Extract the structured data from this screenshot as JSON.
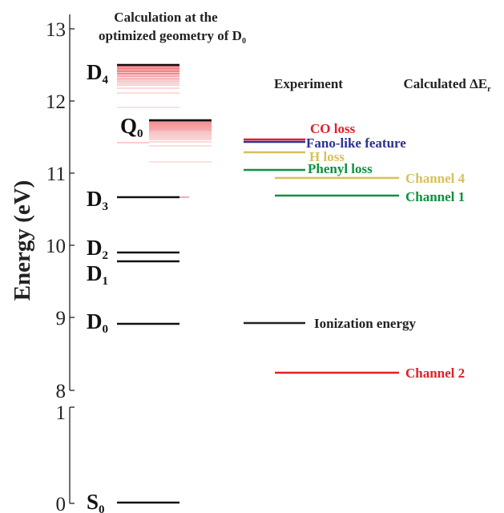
{
  "axis": {
    "ylabel": "Energy (eV)",
    "upper_ticks": [
      "8",
      "9",
      "10",
      "11",
      "12",
      "13"
    ],
    "lower_ticks": [
      "0",
      "1"
    ]
  },
  "headers": {
    "calc_line1": "Calculation at the",
    "calc_line2": "optimized geometry of D",
    "calc_line2_sub": "0",
    "experiment": "Experiment",
    "calculated": "Calculated ΔE",
    "calculated_sub": "r"
  },
  "states": [
    {
      "label": "D",
      "sub": "4",
      "energy": 12.47
    },
    {
      "label": "Q",
      "sub": "0",
      "energy": 11.71
    },
    {
      "label": "D",
      "sub": "3",
      "energy": 10.65
    },
    {
      "label": "D",
      "sub": "2",
      "energy": 9.9
    },
    {
      "label": "D",
      "sub": "1",
      "energy": 9.77
    },
    {
      "label": "D",
      "sub": "0",
      "energy": 8.9
    },
    {
      "label": "S",
      "sub": "0",
      "energy": 0
    }
  ],
  "experiment_lines": [
    {
      "label": "CO loss",
      "energy": 11.45,
      "color": "#e0202a"
    },
    {
      "label": "Fano-like feature",
      "energy": 11.41,
      "color": "#2e3192"
    },
    {
      "label": "H loss",
      "energy": 11.28,
      "color": "#d8c05a"
    },
    {
      "label": "Phenyl loss",
      "energy": 11.04,
      "color": "#0c9140"
    },
    {
      "label": "Ionization energy",
      "energy": 8.9,
      "color": "#222222"
    }
  ],
  "calculated_lines": [
    {
      "label": "Channel 4",
      "energy": 10.92,
      "color": "#d8c05a"
    },
    {
      "label": "Channel 1",
      "energy": 10.67,
      "color": "#0c9140"
    },
    {
      "label": "Channel 2",
      "energy": 8.22,
      "color": "#e0202a"
    }
  ],
  "colors": {
    "state_line": "#111111",
    "manifold_line": "#e62129",
    "axis": "#222222"
  }
}
